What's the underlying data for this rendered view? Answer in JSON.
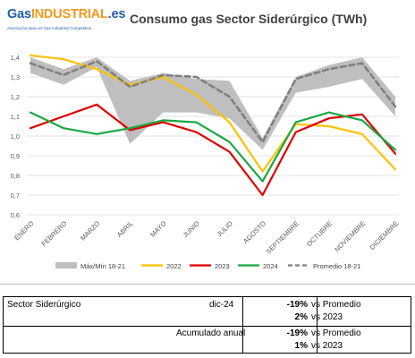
{
  "logo": {
    "name_part1": "Gas",
    "name_part2": "INDUSTRIAL",
    "name_part3": ".es",
    "tagline": "Asociación para un Gas Industrial Competitivo"
  },
  "chart_data": {
    "type": "line",
    "title": "Consumo gas Sector Siderúrgico (TWh)",
    "categories": [
      "ENERO",
      "FEBRERO",
      "MARZO",
      "ABRIL",
      "MAYO",
      "JUNIO",
      "JULIO",
      "AGOSTO",
      "SEPTIEMBRE",
      "OCTUBRE",
      "NOVIEMBRE",
      "DICIEMBRE"
    ],
    "ylim": [
      0.6,
      1.4
    ],
    "yticks": [
      0.6,
      0.7,
      0.8,
      0.9,
      1.0,
      1.1,
      1.2,
      1.3,
      1.4
    ],
    "ytick_labels": [
      "0,6",
      "0,7",
      "0,8",
      "0,9",
      "1,0",
      "1,1",
      "1,2",
      "1,3",
      "1,4"
    ],
    "grid": true,
    "legend_position": "bottom",
    "band": {
      "name": "Máx/Mín 18-21",
      "color": "#bfbfbf",
      "max": [
        1.4,
        1.34,
        1.4,
        1.28,
        1.32,
        1.29,
        1.28,
        0.99,
        1.3,
        1.36,
        1.4,
        1.2
      ],
      "min": [
        1.32,
        1.26,
        1.35,
        0.96,
        1.12,
        1.12,
        1.09,
        0.93,
        1.22,
        1.25,
        1.29,
        1.1
      ]
    },
    "series": [
      {
        "name": "2022",
        "color": "#ffc000",
        "style": "solid",
        "values": [
          1.41,
          1.39,
          1.34,
          1.26,
          1.3,
          1.21,
          1.07,
          0.82,
          1.06,
          1.05,
          1.01,
          0.83
        ]
      },
      {
        "name": "2023",
        "color": "#e00000",
        "style": "solid",
        "values": [
          1.04,
          1.1,
          1.16,
          1.03,
          1.07,
          1.02,
          0.92,
          0.7,
          1.02,
          1.09,
          1.11,
          0.91
        ]
      },
      {
        "name": "2024",
        "color": "#1aa843",
        "style": "solid",
        "values": [
          1.12,
          1.04,
          1.01,
          1.04,
          1.08,
          1.07,
          0.97,
          0.77,
          1.07,
          1.12,
          1.08,
          0.93
        ]
      },
      {
        "name": "Promedio 18-21",
        "color": "#808080",
        "style": "dashed",
        "values": [
          1.37,
          1.31,
          1.38,
          1.25,
          1.31,
          1.3,
          1.2,
          0.97,
          1.29,
          1.34,
          1.37,
          1.15
        ]
      }
    ]
  },
  "table": {
    "label": "Sector Siderúrgico",
    "period": "dic-24",
    "cumulative_label": "Acumulado anual",
    "rows": [
      {
        "pct": "-19%",
        "ref": "vs Promedio"
      },
      {
        "pct": "2%",
        "ref": "vs 2023"
      },
      {
        "pct": "-19%",
        "ref": "vs Promedio"
      },
      {
        "pct": "1%",
        "ref": "vs 2023"
      }
    ]
  }
}
